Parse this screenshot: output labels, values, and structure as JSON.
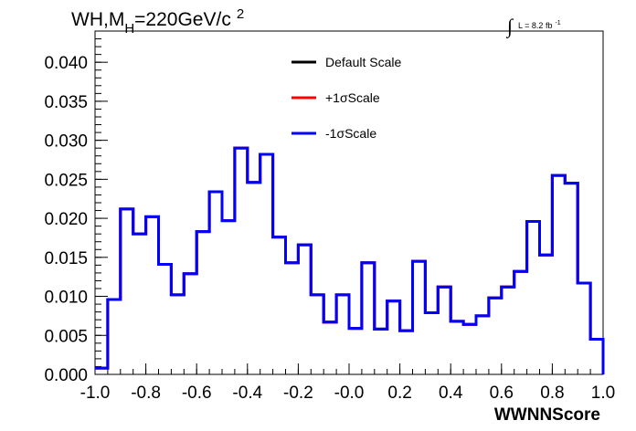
{
  "chart_data": {
    "type": "histogram",
    "title": {
      "main": "WH,M",
      "sub": "H",
      "rest": "=220GeV/c",
      "sup": "2"
    },
    "lumi": {
      "symbol": "∫",
      "text": "L = 8.2 fb",
      "sup": "-1"
    },
    "xlabel": "WWNNScore",
    "ylabel": "",
    "xlim": [
      -1.0,
      1.0
    ],
    "ylim": [
      0.0,
      0.044
    ],
    "x_ticks": [
      "-1.0",
      "-0.8",
      "-0.6",
      "-0.4",
      "-0.2",
      "-0.0",
      "0.2",
      "0.4",
      "0.6",
      "0.8",
      "1.0"
    ],
    "y_ticks": [
      "0.000",
      "0.005",
      "0.010",
      "0.015",
      "0.020",
      "0.025",
      "0.030",
      "0.035",
      "0.040"
    ],
    "bin_edges_start": -1.0,
    "bin_width": 0.05,
    "series": [
      {
        "name": "Default Scale",
        "color": "#000000",
        "values": [
          0.0008,
          0.0096,
          0.0212,
          0.018,
          0.0202,
          0.0141,
          0.0102,
          0.0129,
          0.0183,
          0.0234,
          0.0197,
          0.029,
          0.0246,
          0.0282,
          0.0176,
          0.0143,
          0.0166,
          0.0102,
          0.0067,
          0.0102,
          0.0059,
          0.0143,
          0.0058,
          0.0094,
          0.0056,
          0.0145,
          0.0079,
          0.0112,
          0.0068,
          0.0064,
          0.0075,
          0.0098,
          0.0112,
          0.0132,
          0.0196,
          0.0153,
          0.0255,
          0.0245,
          0.0117,
          0.0045,
          0.0
        ]
      },
      {
        "name": "+1σScale",
        "color": "#ff0000",
        "values": [
          0.0008,
          0.0096,
          0.0212,
          0.018,
          0.0202,
          0.0141,
          0.0102,
          0.0129,
          0.0183,
          0.0234,
          0.0197,
          0.029,
          0.0246,
          0.0282,
          0.0176,
          0.0143,
          0.0166,
          0.0102,
          0.0067,
          0.0102,
          0.0059,
          0.0143,
          0.0058,
          0.0094,
          0.0056,
          0.0145,
          0.0079,
          0.0112,
          0.0068,
          0.0064,
          0.0075,
          0.0098,
          0.0112,
          0.0132,
          0.0196,
          0.0153,
          0.0255,
          0.0245,
          0.0117,
          0.0045,
          0.0
        ]
      },
      {
        "name": "-1σScale",
        "color": "#0000ff",
        "values": [
          0.0008,
          0.0096,
          0.0212,
          0.018,
          0.0202,
          0.0141,
          0.0102,
          0.0129,
          0.0183,
          0.0234,
          0.0197,
          0.029,
          0.0246,
          0.0282,
          0.0176,
          0.0143,
          0.0166,
          0.0102,
          0.0067,
          0.0102,
          0.0059,
          0.0143,
          0.0058,
          0.0094,
          0.0056,
          0.0145,
          0.0079,
          0.0112,
          0.0068,
          0.0064,
          0.0075,
          0.0098,
          0.0112,
          0.0132,
          0.0196,
          0.0153,
          0.0255,
          0.0245,
          0.0117,
          0.0045,
          0.0
        ]
      }
    ],
    "legend_position": "top-center"
  }
}
